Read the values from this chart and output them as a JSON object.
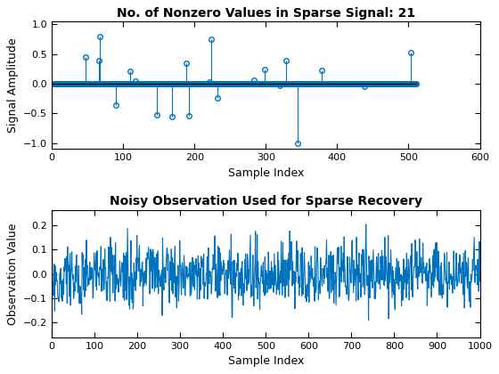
{
  "title1": "No. of Nonzero Values in Sparse Signal: 21",
  "xlabel1": "Sample Index",
  "ylabel1": "Signal Amplitude",
  "xlim1": [
    0,
    600
  ],
  "ylim1": [
    -1.1,
    1.05
  ],
  "xticks1": [
    0,
    100,
    200,
    300,
    400,
    500,
    600
  ],
  "yticks1": [
    -1,
    -0.5,
    0,
    0.5,
    1
  ],
  "N_signal": 512,
  "K_sparse": 21,
  "title2": "Noisy Observation Used for Sparse Recovery",
  "xlabel2": "Sample Index",
  "ylabel2": "Observation Value",
  "xlim2": [
    0,
    1000
  ],
  "ylim2": [
    -0.265,
    0.265
  ],
  "xticks2": [
    0,
    100,
    200,
    300,
    400,
    500,
    600,
    700,
    800,
    900,
    1000
  ],
  "yticks2": [
    -0.2,
    -0.1,
    0,
    0.1,
    0.2
  ],
  "N_obs": 1000,
  "stem_color": "#0072BD",
  "line_color": "#0072BD",
  "bg_color": "#ffffff",
  "seed": 1
}
